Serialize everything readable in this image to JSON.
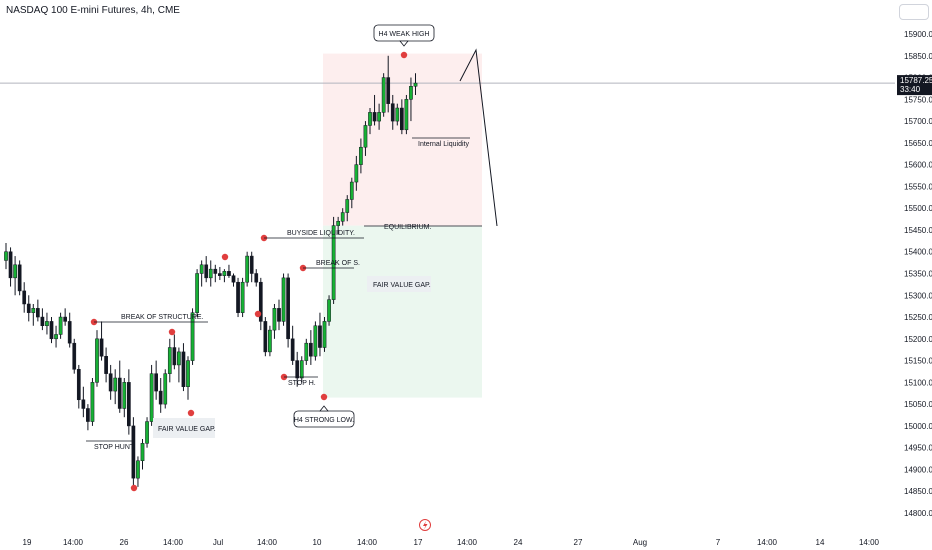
{
  "header": {
    "title": "NASDAQ 100 E-mini Futures, 4h, CME"
  },
  "colors": {
    "up": "#17b034",
    "down": "#131722",
    "pivot": "#e03e3e",
    "premium": "#fdeeee",
    "discount": "#ebf7ef",
    "line": "#131722"
  },
  "price_tag": {
    "price": "15787.25",
    "timer": "33:40"
  },
  "bottom_icon": "lightning-icon",
  "chart_data": {
    "type": "candlestick",
    "title": "NASDAQ 100 E-mini Futures, 4h, CME",
    "ylim": [
      14790,
      15940
    ],
    "y_ticks": [
      14800,
      14850,
      14900,
      14950,
      15000,
      15050,
      15100,
      15150,
      15200,
      15250,
      15300,
      15350,
      15400,
      15450,
      15500,
      15550,
      15600,
      15650,
      15700,
      15750,
      15800,
      15850,
      15900
    ],
    "y_tick_labels": [
      "14800.00",
      "14850.00",
      "14900.00",
      "14950.00",
      "15000.00",
      "15050.00",
      "15100.00",
      "15150.00",
      "15200.00",
      "15250.00",
      "15300.00",
      "15350.00",
      "15400.00",
      "15450.00",
      "15500.00",
      "15550.00",
      "15600.00",
      "15650.00",
      "15700.00",
      "15750.00",
      "15800.00",
      "15850.00",
      "15900.00"
    ],
    "x_ticks": [
      "19",
      "14:00",
      "26",
      "14:00",
      "Jul",
      "14:00",
      "10",
      "14:00",
      "17",
      "14:00",
      "24",
      "27",
      "Aug",
      "7",
      "14:00",
      "14",
      "14:00"
    ],
    "last_price": 15787.25,
    "candles": [
      [
        15380,
        15420,
        15360,
        15400
      ],
      [
        15400,
        15410,
        15320,
        15340
      ],
      [
        15340,
        15390,
        15300,
        15370
      ],
      [
        15370,
        15380,
        15300,
        15310
      ],
      [
        15310,
        15330,
        15260,
        15280
      ],
      [
        15280,
        15300,
        15240,
        15260
      ],
      [
        15260,
        15280,
        15230,
        15270
      ],
      [
        15270,
        15290,
        15240,
        15250
      ],
      [
        15250,
        15270,
        15220,
        15230
      ],
      [
        15230,
        15260,
        15210,
        15240
      ],
      [
        15240,
        15250,
        15190,
        15200
      ],
      [
        15200,
        15230,
        15180,
        15210
      ],
      [
        15210,
        15260,
        15200,
        15250
      ],
      [
        15250,
        15270,
        15230,
        15240
      ],
      [
        15240,
        15260,
        15180,
        15190
      ],
      [
        15190,
        15200,
        15120,
        15130
      ],
      [
        15130,
        15140,
        15040,
        15060
      ],
      [
        15060,
        15090,
        15020,
        15040
      ],
      [
        15040,
        15050,
        14990,
        15010
      ],
      [
        15010,
        15110,
        15000,
        15100
      ],
      [
        15100,
        15220,
        15090,
        15200
      ],
      [
        15200,
        15240,
        15150,
        15160
      ],
      [
        15160,
        15180,
        15100,
        15120
      ],
      [
        15120,
        15140,
        15060,
        15080
      ],
      [
        15080,
        15130,
        15050,
        15110
      ],
      [
        15110,
        15150,
        15030,
        15040
      ],
      [
        15040,
        15110,
        15020,
        15100
      ],
      [
        15100,
        15130,
        14980,
        15000
      ],
      [
        15000,
        15020,
        14860,
        14880
      ],
      [
        14880,
        14930,
        14860,
        14920
      ],
      [
        14920,
        14970,
        14900,
        14960
      ],
      [
        14960,
        15020,
        14950,
        15010
      ],
      [
        15010,
        15140,
        15000,
        15120
      ],
      [
        15120,
        15150,
        15060,
        15080
      ],
      [
        15080,
        15110,
        15030,
        15050
      ],
      [
        15050,
        15130,
        15040,
        15120
      ],
      [
        15120,
        15200,
        15100,
        15180
      ],
      [
        15180,
        15210,
        15130,
        15140
      ],
      [
        15140,
        15180,
        15100,
        15170
      ],
      [
        15170,
        15190,
        15080,
        15090
      ],
      [
        15090,
        15160,
        15060,
        15150
      ],
      [
        15150,
        15270,
        15140,
        15260
      ],
      [
        15260,
        15360,
        15250,
        15350
      ],
      [
        15350,
        15380,
        15320,
        15370
      ],
      [
        15370,
        15390,
        15330,
        15340
      ],
      [
        15340,
        15380,
        15320,
        15360
      ],
      [
        15360,
        15370,
        15330,
        15350
      ],
      [
        15350,
        15365,
        15335,
        15345
      ],
      [
        15345,
        15360,
        15330,
        15355
      ],
      [
        15355,
        15370,
        15340,
        15345
      ],
      [
        15345,
        15350,
        15320,
        15330
      ],
      [
        15330,
        15340,
        15250,
        15260
      ],
      [
        15260,
        15340,
        15250,
        15330
      ],
      [
        15330,
        15400,
        15320,
        15390
      ],
      [
        15390,
        15400,
        15330,
        15350
      ],
      [
        15350,
        15360,
        15320,
        15330
      ],
      [
        15330,
        15340,
        15220,
        15240
      ],
      [
        15240,
        15250,
        15160,
        15170
      ],
      [
        15170,
        15230,
        15160,
        15220
      ],
      [
        15220,
        15280,
        15200,
        15270
      ],
      [
        15270,
        15290,
        15220,
        15240
      ],
      [
        15240,
        15350,
        15230,
        15340
      ],
      [
        15340,
        15350,
        15180,
        15200
      ],
      [
        15200,
        15230,
        15140,
        15150
      ],
      [
        15150,
        15170,
        15090,
        15110
      ],
      [
        15110,
        15160,
        15100,
        15150
      ],
      [
        15150,
        15200,
        15140,
        15190
      ],
      [
        15190,
        15220,
        15140,
        15160
      ],
      [
        15160,
        15240,
        15150,
        15230
      ],
      [
        15230,
        15260,
        15160,
        15180
      ],
      [
        15180,
        15250,
        15170,
        15240
      ],
      [
        15240,
        15300,
        15230,
        15290
      ],
      [
        15290,
        15480,
        15280,
        15460
      ],
      [
        15460,
        15480,
        15440,
        15470
      ],
      [
        15470,
        15500,
        15460,
        15490
      ],
      [
        15490,
        15530,
        15470,
        15520
      ],
      [
        15520,
        15570,
        15500,
        15560
      ],
      [
        15560,
        15620,
        15540,
        15600
      ],
      [
        15600,
        15660,
        15580,
        15640
      ],
      [
        15640,
        15700,
        15620,
        15690
      ],
      [
        15690,
        15730,
        15670,
        15720
      ],
      [
        15720,
        15760,
        15690,
        15700
      ],
      [
        15700,
        15740,
        15680,
        15720
      ],
      [
        15720,
        15810,
        15710,
        15800
      ],
      [
        15800,
        15850,
        15720,
        15740
      ],
      [
        15740,
        15760,
        15680,
        15700
      ],
      [
        15700,
        15740,
        15690,
        15730
      ],
      [
        15730,
        15750,
        15670,
        15680
      ],
      [
        15680,
        15760,
        15670,
        15750
      ],
      [
        15750,
        15800,
        15700,
        15780
      ],
      [
        15780,
        15810,
        15760,
        15787.25
      ]
    ],
    "annotations": [
      {
        "text": "H4 WEAK HIGH",
        "style": "callout"
      },
      {
        "text": "Internal Liquidity",
        "style": "label"
      },
      {
        "text": "BUYSIDE LIQUIDITY.",
        "style": "label"
      },
      {
        "text": "EQUILIBRIUM.",
        "style": "label"
      },
      {
        "text": "BREAK OF S.",
        "style": "label"
      },
      {
        "text": "FAIR VALUE GAP.",
        "style": "fvg"
      },
      {
        "text": "BREAK OF STRUCTURE.",
        "style": "label"
      },
      {
        "text": "STOP H.",
        "style": "label"
      },
      {
        "text": "H4 STRONG LOW.",
        "style": "callout"
      },
      {
        "text": "FAIR VALUE GAP.",
        "style": "fvg"
      },
      {
        "text": "STOP HUNT.",
        "style": "label"
      }
    ]
  }
}
